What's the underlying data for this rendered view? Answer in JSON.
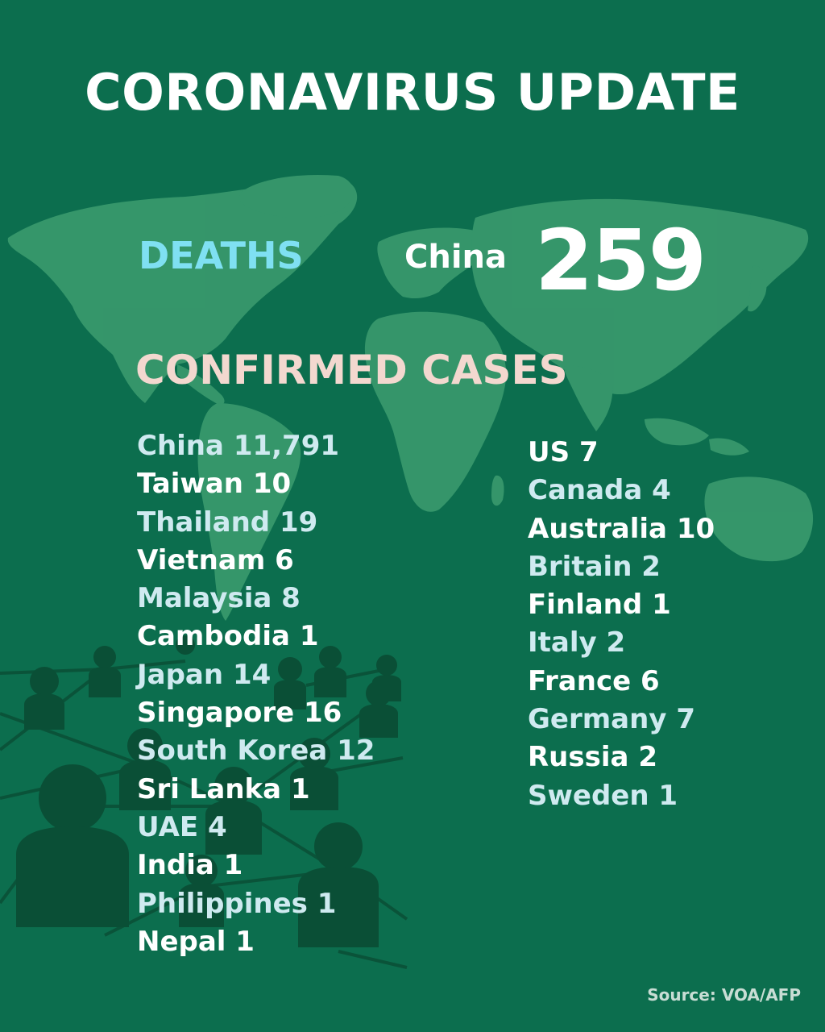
{
  "title": "CORONAVIRUS UPDATE",
  "deaths": {
    "label": "DEATHS",
    "country": "China",
    "value": "259"
  },
  "confirmed_cases": {
    "heading": "CONFIRMED CASES",
    "left_column": [
      {
        "country": "China",
        "count": "11,791"
      },
      {
        "country": "Taiwan",
        "count": "10"
      },
      {
        "country": "Thailand",
        "count": "19"
      },
      {
        "country": "Vietnam",
        "count": "6"
      },
      {
        "country": "Malaysia",
        "count": "8"
      },
      {
        "country": "Cambodia",
        "count": "1"
      },
      {
        "country": "Japan",
        "count": "14"
      },
      {
        "country": "Singapore",
        "count": "16"
      },
      {
        "country": "South Korea",
        "count": "12"
      },
      {
        "country": "Sri Lanka",
        "count": "1"
      },
      {
        "country": "UAE",
        "count": "4"
      },
      {
        "country": "India",
        "count": "1"
      },
      {
        "country": "Philippines",
        "count": "1"
      },
      {
        "country": "Nepal",
        "count": "1"
      }
    ],
    "right_column": [
      {
        "country": "US",
        "count": "7"
      },
      {
        "country": "Canada",
        "count": "4"
      },
      {
        "country": "Australia",
        "count": "10"
      },
      {
        "country": "Britain",
        "count": "2"
      },
      {
        "country": "Finland",
        "count": "1"
      },
      {
        "country": "Italy",
        "count": "2"
      },
      {
        "country": "France",
        "count": "6"
      },
      {
        "country": "Germany",
        "count": "7"
      },
      {
        "country": "Russia",
        "count": "2"
      },
      {
        "country": "Sweden",
        "count": "1"
      }
    ]
  },
  "source": "Source: VOA/AFP",
  "colors": {
    "background": "#0c6e4e",
    "map": "#3a9a6e",
    "people": "#0a4f36",
    "deaths_label": "#7fe0f2",
    "cases_heading": "#f3d8cf",
    "list_alt": "#cfeaf0",
    "list_white": "#ffffff"
  },
  "icons": {
    "background_map": "world-map-icon",
    "background_people": "people-network-icon"
  }
}
